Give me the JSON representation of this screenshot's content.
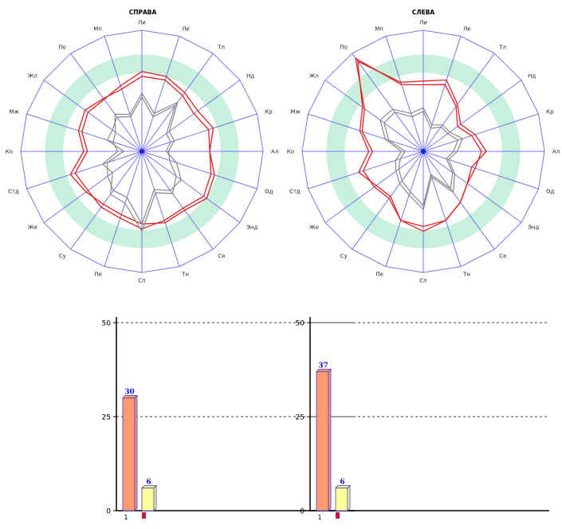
{
  "chart_data": [
    {
      "type": "radar",
      "title": "СПРАВА",
      "axes": [
        "Ли",
        "Ле",
        "Тл",
        "Нд",
        "Кр",
        "Ал",
        "Од",
        "Энд",
        "Се",
        "Тн",
        "Сп",
        "Пе",
        "Су",
        "Же",
        "Стд",
        "Ко",
        "Мж",
        "Жл",
        "По",
        "Мп"
      ],
      "rmax": 100,
      "band": [
        65,
        80
      ],
      "series": [
        {
          "color": "#e02020",
          "values": [
            62,
            62,
            57,
            53,
            58,
            56,
            63,
            66,
            60,
            62,
            60,
            55,
            54,
            57,
            62,
            48,
            55,
            58,
            54,
            54
          ]
        },
        {
          "color": "#e02020",
          "values": [
            66,
            65,
            60,
            57,
            62,
            56,
            60,
            63,
            58,
            60,
            64,
            58,
            57,
            55,
            58,
            45,
            52,
            55,
            53,
            57
          ]
        },
        {
          "color": "#888888",
          "values": [
            45,
            30,
            47,
            25,
            25,
            20,
            30,
            40,
            40,
            33,
            60,
            40,
            40,
            35,
            30,
            15,
            30,
            30,
            35,
            30
          ]
        },
        {
          "color": "#888888",
          "values": [
            48,
            33,
            50,
            28,
            28,
            22,
            24,
            35,
            43,
            36,
            66,
            45,
            44,
            30,
            34,
            20,
            25,
            27,
            38,
            32
          ]
        }
      ]
    },
    {
      "type": "radar",
      "title": "СЛЕВА",
      "axes": [
        "Ли",
        "Ле",
        "Тл",
        "Нд",
        "Кр",
        "Ал",
        "Од",
        "Энд",
        "Се",
        "Тн",
        "Сп",
        "Пе",
        "Су",
        "Же",
        "Стд",
        "Ко",
        "Мж",
        "Жл",
        "По",
        "Мп"
      ],
      "rmax": 100,
      "band": [
        65,
        80
      ],
      "series": [
        {
          "color": "#e02020",
          "values": [
            55,
            58,
            46,
            35,
            42,
            48,
            45,
            45,
            52,
            60,
            62,
            60,
            48,
            50,
            52,
            42,
            53,
            60,
            95,
            58
          ]
        },
        {
          "color": "#e02020",
          "values": [
            58,
            62,
            48,
            38,
            45,
            52,
            42,
            45,
            52,
            60,
            66,
            60,
            46,
            48,
            56,
            45,
            55,
            62,
            92,
            60
          ]
        },
        {
          "color": "#888888",
          "values": [
            33,
            20,
            25,
            25,
            30,
            25,
            20,
            30,
            38,
            20,
            45,
            35,
            30,
            25,
            20,
            15,
            30,
            40,
            40,
            30
          ]
        },
        {
          "color": "#888888",
          "values": [
            36,
            23,
            27,
            27,
            34,
            28,
            22,
            32,
            42,
            22,
            48,
            38,
            33,
            28,
            24,
            18,
            33,
            44,
            43,
            33
          ]
        }
      ]
    },
    {
      "type": "bar",
      "categories": [
        "1"
      ],
      "series": [
        {
          "values": [
            30
          ],
          "color": "#ff9a70"
        },
        {
          "values": [
            6
          ],
          "color": "#ffff99"
        }
      ],
      "yticks": [
        "0",
        "25",
        "50"
      ],
      "ylim": [
        0,
        50
      ],
      "grid": true,
      "data_labels": [
        "30",
        "6"
      ]
    },
    {
      "type": "bar",
      "categories": [
        "1"
      ],
      "series": [
        {
          "values": [
            37
          ],
          "color": "#ff9a70"
        },
        {
          "values": [
            6
          ],
          "color": "#ffff99"
        }
      ],
      "yticks": [
        "0",
        "25",
        "50"
      ],
      "ylim": [
        0,
        50
      ],
      "grid": true,
      "data_labels": [
        "37",
        "6"
      ]
    }
  ],
  "colors": {
    "spoke": "#7777ee",
    "band": "#c8f0dc",
    "label_blue": "#1010cc",
    "marker": "#cc1144"
  }
}
